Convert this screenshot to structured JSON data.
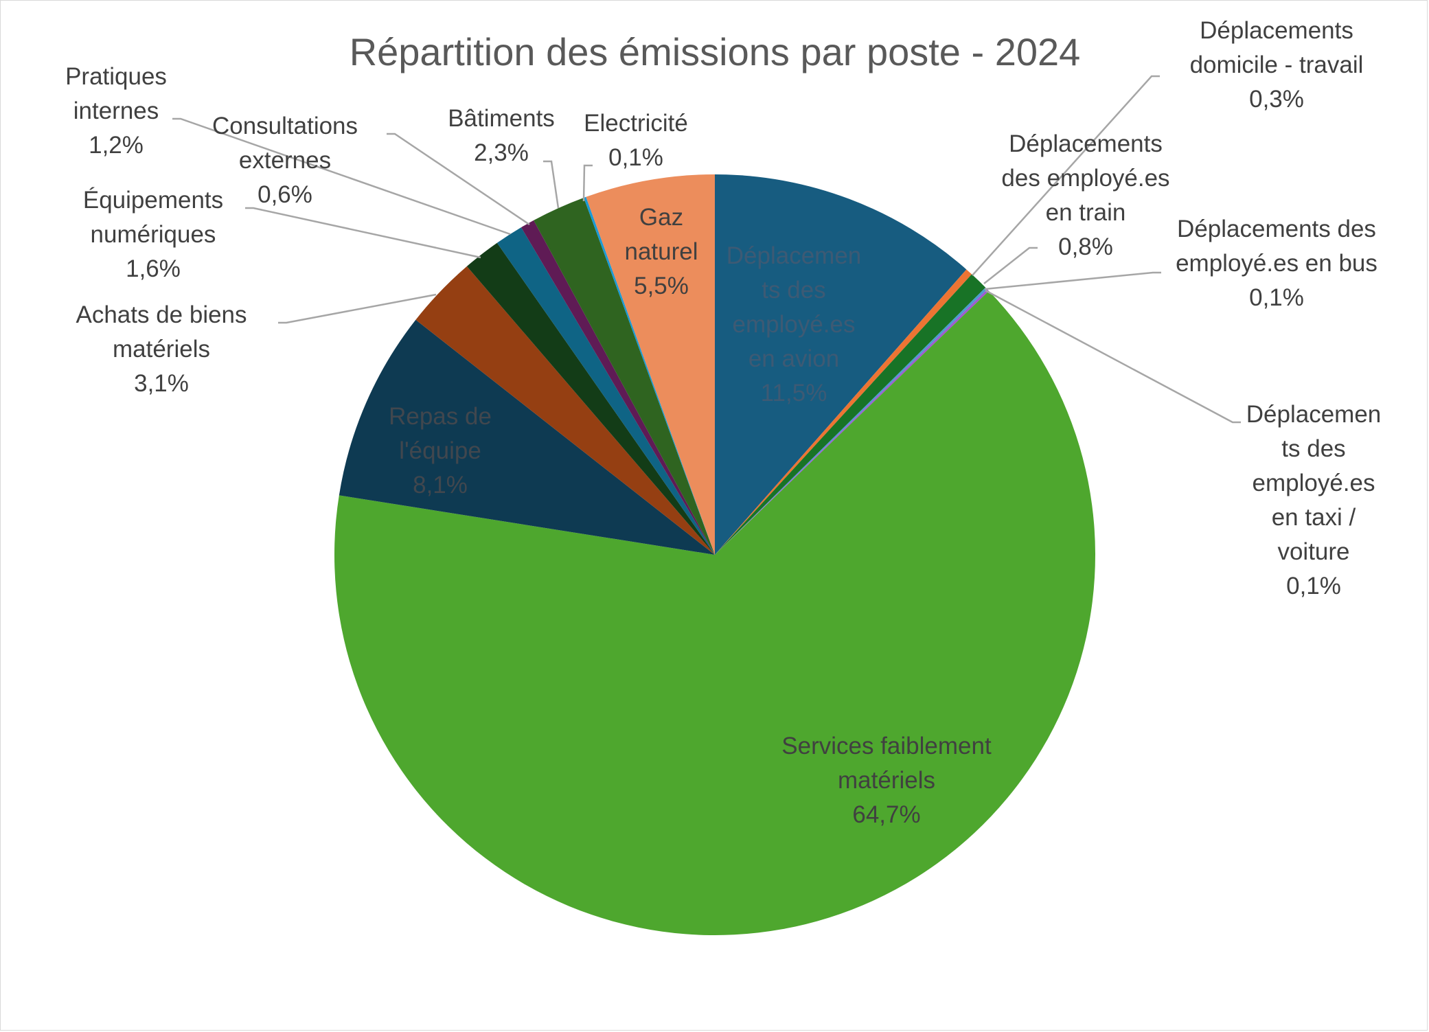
{
  "chart_data": {
    "type": "pie",
    "title": "Répartition des émissions par poste - 2024",
    "start_angle_deg": 0,
    "direction": "clockwise",
    "slices": [
      {
        "name": "Déplacements des employé.es en avion",
        "lines": [
          "Déplacemen",
          "ts des",
          "employé.es",
          "en avion"
        ],
        "value": 11.5,
        "label": "11,5%",
        "color": "#175c80",
        "label_color": "#3d5a74"
      },
      {
        "name": "Déplacements domicile - travail",
        "lines": [
          "Déplacements",
          "domicile - travail"
        ],
        "value": 0.3,
        "label": "0,3%",
        "color": "#ed7433",
        "label_color": "#404040"
      },
      {
        "name": "Déplacements des employé.es en train",
        "lines": [
          "Déplacements",
          "des employé.es",
          "en train"
        ],
        "value": 0.8,
        "label": "0,8%",
        "color": "#187326",
        "label_color": "#404040"
      },
      {
        "name": "Déplacements des employé.es en bus",
        "lines": [
          "Déplacements des",
          "employé.es en bus"
        ],
        "value": 0.1,
        "label": "0,1%",
        "color": "#4c9bd0",
        "label_color": "#404040"
      },
      {
        "name": "Déplacements des employé.es en taxi / voiture",
        "lines": [
          "Déplacemen",
          "ts des",
          "employé.es",
          "en taxi /",
          "voiture"
        ],
        "value": 0.1,
        "label": "0,1%",
        "color": "#a05ad0",
        "label_color": "#404040"
      },
      {
        "name": "Services faiblement matériels",
        "lines": [
          "Services faiblement",
          "matériels"
        ],
        "value": 64.7,
        "label": "64,7%",
        "color": "#4ea72e",
        "label_color": "#404040"
      },
      {
        "name": "Repas de l'équipe",
        "lines": [
          "Repas de",
          "l'équipe"
        ],
        "value": 8.1,
        "label": "8,1%",
        "color": "#0e3a52",
        "label_color": "#41474e"
      },
      {
        "name": "Achats de biens matériels",
        "lines": [
          "Achats de biens",
          "matériels"
        ],
        "value": 3.1,
        "label": "3,1%",
        "color": "#953f12",
        "label_color": "#404040"
      },
      {
        "name": "Équipements numériques",
        "lines": [
          "Équipements",
          "numériques"
        ],
        "value": 1.6,
        "label": "1,6%",
        "color": "#133c17",
        "label_color": "#404040"
      },
      {
        "name": "Pratiques internes",
        "lines": [
          "Pratiques",
          "internes"
        ],
        "value": 1.2,
        "label": "1,2%",
        "color": "#0f6485",
        "label_color": "#404040"
      },
      {
        "name": "Consultations externes",
        "lines": [
          "Consultations",
          "externes"
        ],
        "value": 0.6,
        "label": "0,6%",
        "color": "#5f1b55",
        "label_color": "#404040"
      },
      {
        "name": "Bâtiments",
        "lines": [
          "Bâtiments"
        ],
        "value": 2.3,
        "label": "2,3%",
        "color": "#2f6420",
        "label_color": "#404040"
      },
      {
        "name": "Electricité",
        "lines": [
          "Electricité"
        ],
        "value": 0.1,
        "label": "0,1%",
        "color": "#1a9ad6",
        "label_color": "#404040"
      },
      {
        "name": "Gaz naturel",
        "lines": [
          "Gaz",
          "naturel"
        ],
        "value": 5.5,
        "label": "5,5%",
        "color": "#ec8d5c",
        "label_color": "#404040"
      }
    ]
  }
}
